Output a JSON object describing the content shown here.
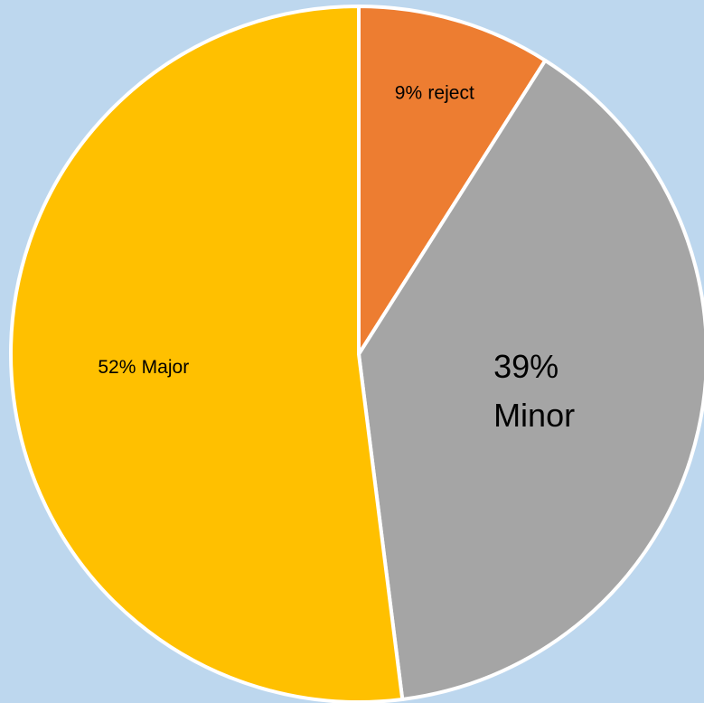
{
  "chart_data": {
    "type": "pie",
    "categories": [
      "reject",
      "Minor",
      "Major"
    ],
    "values": [
      9,
      39,
      52
    ],
    "value_labels": [
      "9%",
      "39%",
      "52%"
    ],
    "colors": [
      "#ED7D31",
      "#A5A5A5",
      "#FFC000"
    ]
  }
}
